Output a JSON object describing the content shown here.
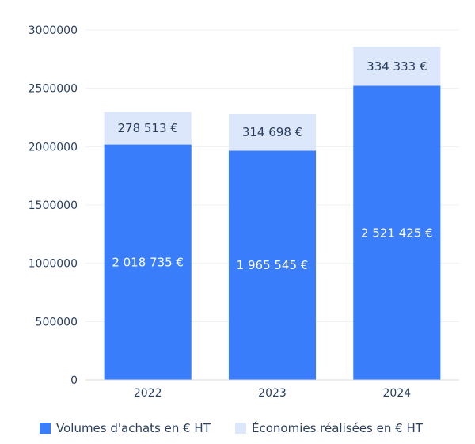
{
  "chart_data": {
    "type": "bar",
    "stacked": true,
    "categories": [
      "2022",
      "2023",
      "2024"
    ],
    "series": [
      {
        "name": "Volumes d'achats en € HT",
        "color": "#3a7dfb",
        "label_color": "#ffffff",
        "values": [
          2018735,
          1965545,
          2521425
        ],
        "labels": [
          "2 018 735 €",
          "1 965 545 €",
          "2 521 425 €"
        ]
      },
      {
        "name": "Économies réalisées en € HT",
        "color": "#dde7fb",
        "label_color": "#2a3f5f",
        "values": [
          278513,
          314698,
          334333
        ],
        "labels": [
          "278 513 €",
          "314 698 €",
          "334 333 €"
        ]
      }
    ],
    "ylim": [
      0,
      3000000
    ],
    "yticks": [
      0,
      500000,
      1000000,
      1500000,
      2000000,
      2500000,
      3000000
    ],
    "ytick_labels": [
      "0",
      "500000",
      "1000000",
      "1500000",
      "2000000",
      "2500000",
      "3000000"
    ],
    "grid": true,
    "legend_position": "bottom"
  }
}
